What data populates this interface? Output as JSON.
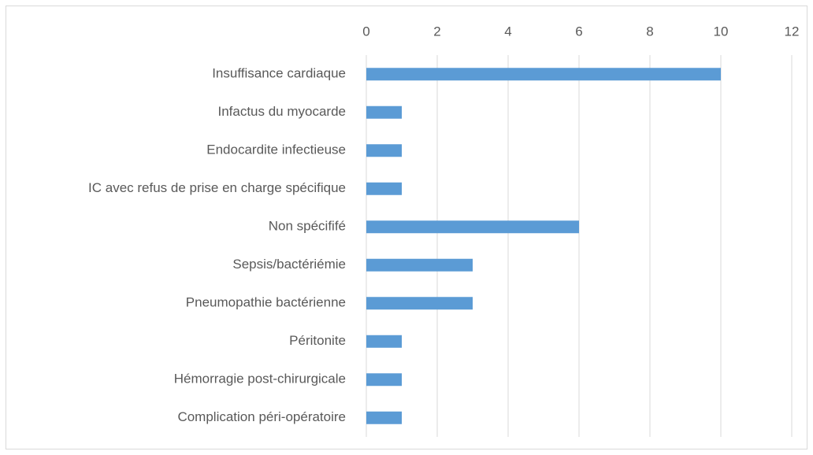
{
  "chart_data": {
    "type": "bar",
    "orientation": "horizontal",
    "categories": [
      "Insuffisance cardiaque",
      "Infactus du myocarde",
      "Endocardite infectieuse",
      "IC avec refus de prise en charge spécifique",
      "Non spécififé",
      "Sepsis/bactériémie",
      "Pneumopathie bactérienne",
      "Péritonite",
      "Hémorragie post-chirurgicale",
      "Complication péri-opératoire"
    ],
    "values": [
      10,
      1,
      1,
      1,
      6,
      3,
      3,
      1,
      1,
      1
    ],
    "color": "#5b9bd5",
    "xlim": [
      0,
      12
    ],
    "xticks": [
      0,
      2,
      4,
      6,
      8,
      10,
      12
    ],
    "grid": true
  }
}
